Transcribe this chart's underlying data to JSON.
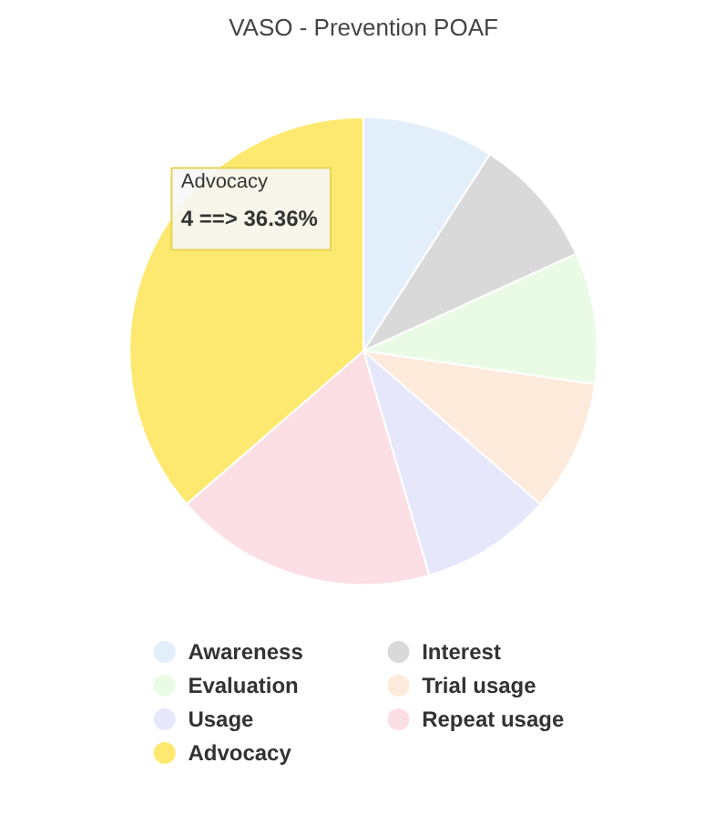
{
  "chart_data": {
    "type": "pie",
    "title": "VASO - Prevention POAF",
    "categories": [
      "Awareness",
      "Interest",
      "Evaluation",
      "Trial usage",
      "Usage",
      "Repeat usage",
      "Advocacy"
    ],
    "values": [
      9.09,
      9.09,
      9.09,
      9.09,
      9.09,
      18.18,
      36.36
    ],
    "colors": [
      "#e3eefb",
      "#d9d9da",
      "#e9fbe5",
      "#fdeadb",
      "#e6e7fb",
      "#fcdee5",
      "#fde96f"
    ],
    "legend": "bottom",
    "annotations": [
      "Advocacy",
      "4 ==> 36.36%"
    ]
  }
}
